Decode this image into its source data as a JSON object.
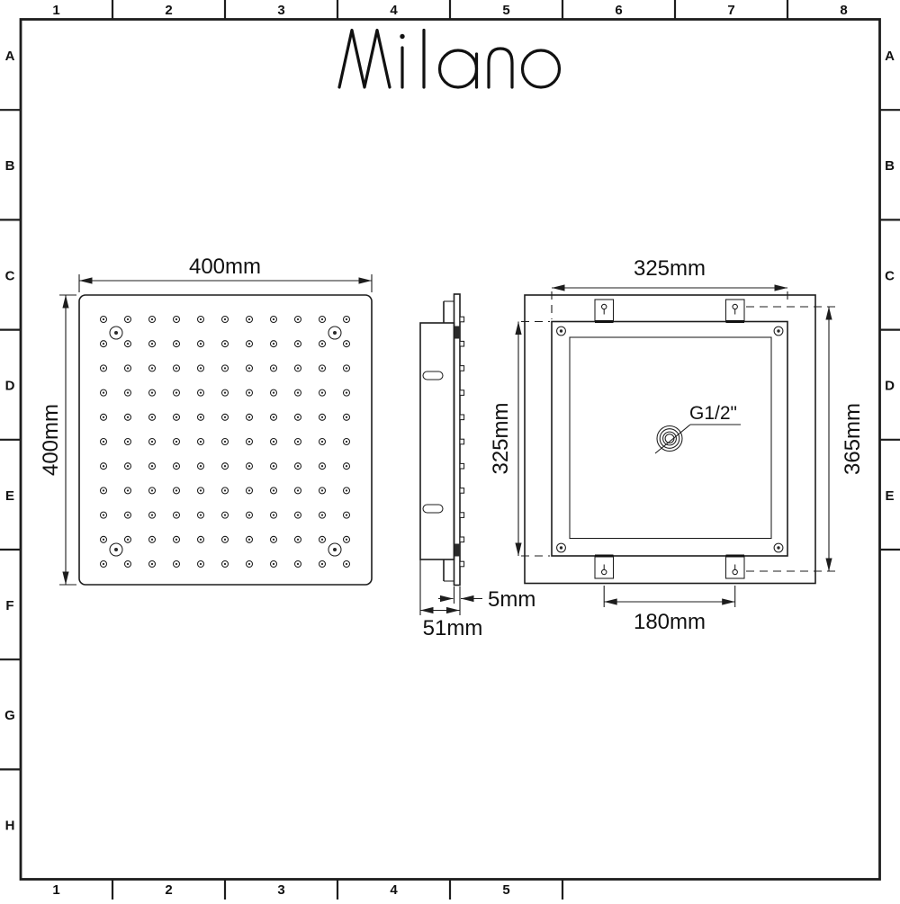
{
  "logo": {
    "text": "Milano"
  },
  "frame": {
    "top_numbers": [
      "1",
      "2",
      "3",
      "4",
      "5",
      "6",
      "7",
      "8"
    ],
    "bottom_numbers": [
      "1",
      "2",
      "3",
      "4",
      "5"
    ],
    "left_letters": [
      "A",
      "B",
      "C",
      "D",
      "E",
      "F",
      "G",
      "H"
    ],
    "right_letters": [
      "A",
      "B",
      "C",
      "D",
      "E"
    ]
  },
  "colors": {
    "line": "#1d1d1d",
    "background": "#ffffff"
  },
  "views": {
    "front": {
      "width_label": "400mm",
      "height_label": "400mm",
      "nozzle_grid": {
        "rows": 11,
        "cols": 11
      },
      "screw_count": 4
    },
    "side": {
      "depth_label": "51mm",
      "plate_label": "5mm",
      "slot_count": 2
    },
    "back": {
      "top_label": "325mm",
      "left_label": "325mm",
      "right_label": "365mm",
      "bottom_label": "180mm",
      "connection_label": "G1/2\""
    }
  }
}
